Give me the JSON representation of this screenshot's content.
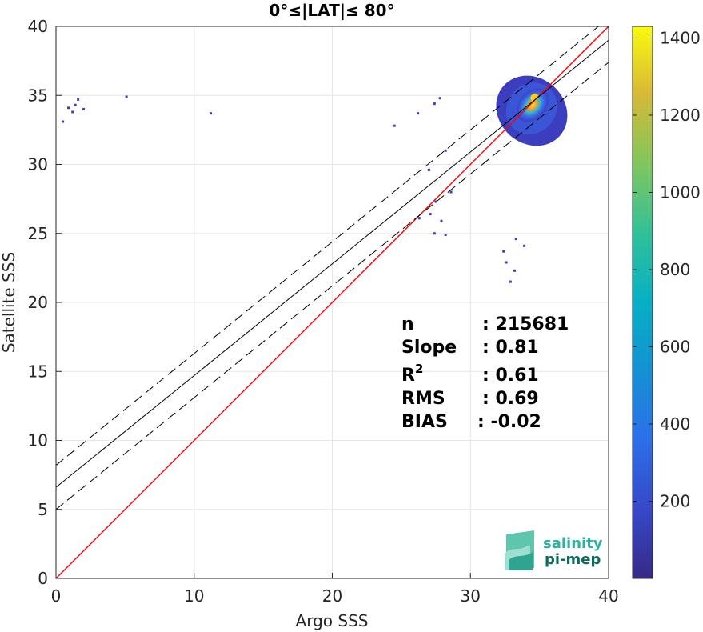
{
  "chart_data": {
    "type": "heatmap",
    "title": "0°≤|LAT|≤ 80°",
    "xlabel": "Argo SSS",
    "ylabel": "Satellite SSS",
    "xlim": [
      0,
      40
    ],
    "ylim": [
      0,
      40
    ],
    "xticks": [
      "0",
      "10",
      "20",
      "30",
      "40"
    ],
    "yticks": [
      "0",
      "5",
      "10",
      "15",
      "20",
      "25",
      "30",
      "35",
      "40"
    ],
    "grid": true,
    "colormap": "parula",
    "colorbar": {
      "range": [
        0,
        1430
      ],
      "ticks": [
        "200",
        "400",
        "600",
        "800",
        "1000",
        "1200",
        "1400"
      ],
      "tick_values": [
        200,
        400,
        600,
        800,
        1000,
        1200,
        1400
      ]
    },
    "density_cluster": {
      "center": [
        34.5,
        34.3
      ],
      "x_range": [
        31.0,
        36.0
      ],
      "y_range": [
        28.5,
        37.3
      ],
      "peak_count": 1400
    },
    "outliers": [
      [
        1.6,
        34.7
      ],
      [
        1.4,
        34.3
      ],
      [
        1.2,
        33.8
      ],
      [
        2.0,
        34.0
      ],
      [
        0.9,
        34.1
      ],
      [
        0.5,
        33.1
      ],
      [
        5.1,
        34.9
      ],
      [
        11.2,
        33.7
      ],
      [
        26.2,
        33.7
      ],
      [
        27.4,
        34.4
      ],
      [
        27.8,
        34.8
      ],
      [
        24.5,
        32.8
      ],
      [
        28.2,
        31.0
      ],
      [
        27.0,
        29.6
      ],
      [
        27.5,
        27.3
      ],
      [
        28.6,
        28.0
      ],
      [
        27.1,
        26.4
      ],
      [
        27.9,
        25.9
      ],
      [
        28.2,
        24.9
      ],
      [
        26.3,
        26.1
      ],
      [
        27.4,
        25.0
      ],
      [
        32.6,
        22.9
      ],
      [
        33.2,
        22.3
      ],
      [
        32.9,
        21.5
      ],
      [
        33.3,
        24.6
      ],
      [
        33.9,
        24.1
      ],
      [
        32.4,
        23.7
      ]
    ],
    "lines": [
      {
        "name": "1:1",
        "color": "#ff0000",
        "slope": 1.0,
        "intercept": 0.0,
        "style": "solid"
      },
      {
        "name": "fit",
        "color": "#000000",
        "slope": 0.81,
        "intercept": 6.6,
        "style": "solid"
      },
      {
        "name": "fit + std",
        "color": "#000000",
        "slope": 0.81,
        "intercept": 8.2,
        "style": "dashed"
      },
      {
        "name": "fit - std",
        "color": "#000000",
        "slope": 0.81,
        "intercept": 5.0,
        "style": "dashed"
      }
    ]
  },
  "stats": [
    {
      "label": "n",
      "value": ": 215681"
    },
    {
      "label": "Slope",
      "value": ": 0.81"
    },
    {
      "label": "R",
      "sup": "2",
      "value": ": 0.61"
    },
    {
      "label": "RMS",
      "value": ": 0.69"
    },
    {
      "label": "BIAS",
      "value": ": -0.02"
    }
  ],
  "logo": {
    "line1": "salinity",
    "line2": "pi-mep",
    "color1": "#2bb3a0",
    "color2": "#0b6a5e"
  }
}
